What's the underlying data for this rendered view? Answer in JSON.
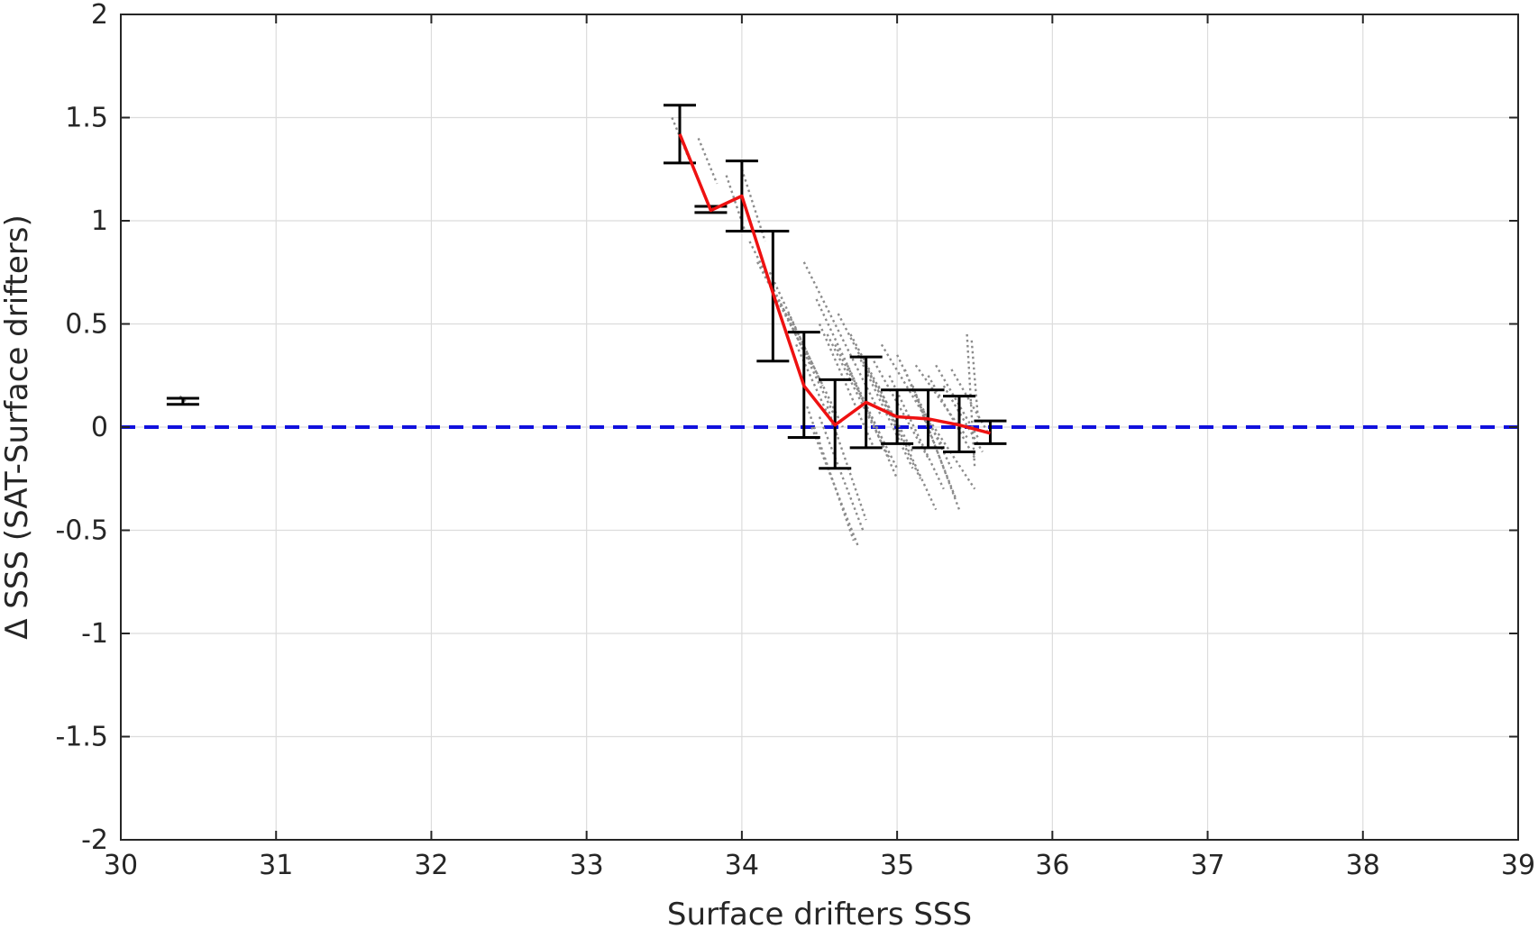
{
  "chart_data": {
    "type": "scatter",
    "title": "",
    "xlabel": "Surface drifters SSS",
    "ylabel": "Δ SSS (SAT-Surface drifters)",
    "xlim": [
      30,
      39
    ],
    "ylim": [
      -2,
      2
    ],
    "xticks": [
      30,
      31,
      32,
      33,
      34,
      35,
      36,
      37,
      38,
      39
    ],
    "yticks": [
      -2,
      -1.5,
      -1,
      -0.5,
      0,
      0.5,
      1,
      1.5,
      2
    ],
    "ytick_labels": [
      "-2",
      "-1.5",
      "-1",
      "-0.5",
      "0",
      "0.5",
      "1",
      "1.5",
      "2"
    ],
    "grid": true,
    "legend": "none",
    "colors": {
      "scatter": "#8c8c8c",
      "mean_line": "#ee1111",
      "error_bar": "#000000",
      "zero_line": "#1111dd",
      "grid": "#dcdcdc",
      "axis": "#262626"
    },
    "reference_line": {
      "y": 0,
      "style": "dashed"
    },
    "mean_line": {
      "x": [
        33.6,
        33.8,
        34.0,
        34.2,
        34.4,
        34.6,
        34.8,
        35.0,
        35.2,
        35.4,
        35.6
      ],
      "y": [
        1.42,
        1.05,
        1.12,
        0.65,
        0.2,
        0.01,
        0.12,
        0.05,
        0.04,
        0.01,
        -0.03
      ]
    },
    "error_bars": [
      {
        "x": 30.4,
        "low": 0.11,
        "high": 0.14
      },
      {
        "x": 33.6,
        "low": 1.28,
        "high": 1.56
      },
      {
        "x": 33.8,
        "low": 1.04,
        "high": 1.07
      },
      {
        "x": 34.0,
        "low": 0.95,
        "high": 1.29
      },
      {
        "x": 34.2,
        "low": 0.32,
        "high": 0.95
      },
      {
        "x": 34.4,
        "low": -0.05,
        "high": 0.46
      },
      {
        "x": 34.6,
        "low": -0.2,
        "high": 0.23
      },
      {
        "x": 34.8,
        "low": -0.1,
        "high": 0.34
      },
      {
        "x": 35.0,
        "low": -0.08,
        "high": 0.18
      },
      {
        "x": 35.2,
        "low": -0.1,
        "high": 0.18
      },
      {
        "x": 35.4,
        "low": -0.12,
        "high": 0.15
      },
      {
        "x": 35.6,
        "low": -0.08,
        "high": 0.03
      }
    ],
    "scatter_streaks": [
      {
        "x0": 30.38,
        "y0": 0.15,
        "x1": 30.44,
        "y1": 0.11
      },
      {
        "x0": 33.55,
        "y0": 1.5,
        "x1": 33.66,
        "y1": 1.3
      },
      {
        "x0": 33.72,
        "y0": 1.4,
        "x1": 33.84,
        "y1": 1.18
      },
      {
        "x0": 33.9,
        "y0": 1.22,
        "x1": 34.02,
        "y1": 0.95
      },
      {
        "x0": 34.0,
        "y0": 1.25,
        "x1": 34.15,
        "y1": 0.9
      },
      {
        "x0": 34.05,
        "y0": 0.9,
        "x1": 34.35,
        "y1": 0.45
      },
      {
        "x0": 34.1,
        "y0": 0.8,
        "x1": 34.45,
        "y1": 0.3
      },
      {
        "x0": 34.18,
        "y0": 0.75,
        "x1": 34.52,
        "y1": 0.2
      },
      {
        "x0": 34.25,
        "y0": 0.6,
        "x1": 34.6,
        "y1": 0.05
      },
      {
        "x0": 34.3,
        "y0": 0.55,
        "x1": 34.65,
        "y1": 0.0
      },
      {
        "x0": 34.4,
        "y0": 0.8,
        "x1": 34.9,
        "y1": 0.05
      },
      {
        "x0": 34.35,
        "y0": 0.4,
        "x1": 34.62,
        "y1": -0.05
      },
      {
        "x0": 34.48,
        "y0": 0.62,
        "x1": 34.9,
        "y1": -0.05
      },
      {
        "x0": 34.5,
        "y0": 0.5,
        "x1": 34.85,
        "y1": -0.1
      },
      {
        "x0": 34.42,
        "y0": 0.1,
        "x1": 34.72,
        "y1": -0.55
      },
      {
        "x0": 34.45,
        "y0": 0.0,
        "x1": 34.75,
        "y1": -0.58
      },
      {
        "x0": 34.5,
        "y0": 0.05,
        "x1": 34.78,
        "y1": -0.5
      },
      {
        "x0": 34.55,
        "y0": 0.45,
        "x1": 34.95,
        "y1": -0.15
      },
      {
        "x0": 34.6,
        "y0": 0.4,
        "x1": 35.0,
        "y1": -0.2
      },
      {
        "x0": 34.62,
        "y0": 0.55,
        "x1": 35.0,
        "y1": 0.0
      },
      {
        "x0": 34.55,
        "y0": 0.1,
        "x1": 34.8,
        "y1": -0.45
      },
      {
        "x0": 34.68,
        "y0": 0.3,
        "x1": 35.0,
        "y1": -0.25
      },
      {
        "x0": 34.7,
        "y0": 0.45,
        "x1": 35.1,
        "y1": -0.12
      },
      {
        "x0": 34.75,
        "y0": 0.35,
        "x1": 35.1,
        "y1": -0.2
      },
      {
        "x0": 34.8,
        "y0": 0.3,
        "x1": 35.15,
        "y1": -0.25
      },
      {
        "x0": 34.85,
        "y0": 0.32,
        "x1": 35.2,
        "y1": -0.15
      },
      {
        "x0": 34.9,
        "y0": 0.4,
        "x1": 35.3,
        "y1": -0.1
      },
      {
        "x0": 34.95,
        "y0": 0.25,
        "x1": 35.3,
        "y1": -0.3
      },
      {
        "x0": 35.0,
        "y0": 0.35,
        "x1": 35.35,
        "y1": -0.2
      },
      {
        "x0": 35.05,
        "y0": 0.28,
        "x1": 35.38,
        "y1": -0.35
      },
      {
        "x0": 35.1,
        "y0": 0.2,
        "x1": 35.4,
        "y1": -0.4
      },
      {
        "x0": 35.12,
        "y0": 0.3,
        "x1": 35.45,
        "y1": -0.05
      },
      {
        "x0": 35.2,
        "y0": 0.25,
        "x1": 35.5,
        "y1": -0.15
      },
      {
        "x0": 35.25,
        "y0": 0.3,
        "x1": 35.52,
        "y1": -0.05
      },
      {
        "x0": 35.3,
        "y0": 0.2,
        "x1": 35.55,
        "y1": -0.12
      },
      {
        "x0": 35.35,
        "y0": 0.28,
        "x1": 35.58,
        "y1": -0.02
      },
      {
        "x0": 35.45,
        "y0": 0.45,
        "x1": 35.5,
        "y1": -0.2
      },
      {
        "x0": 35.48,
        "y0": 0.42,
        "x1": 35.52,
        "y1": 0.05
      },
      {
        "x0": 34.88,
        "y0": 0.2,
        "x1": 35.25,
        "y1": -0.4
      },
      {
        "x0": 35.15,
        "y0": 0.1,
        "x1": 35.5,
        "y1": -0.3
      }
    ]
  }
}
